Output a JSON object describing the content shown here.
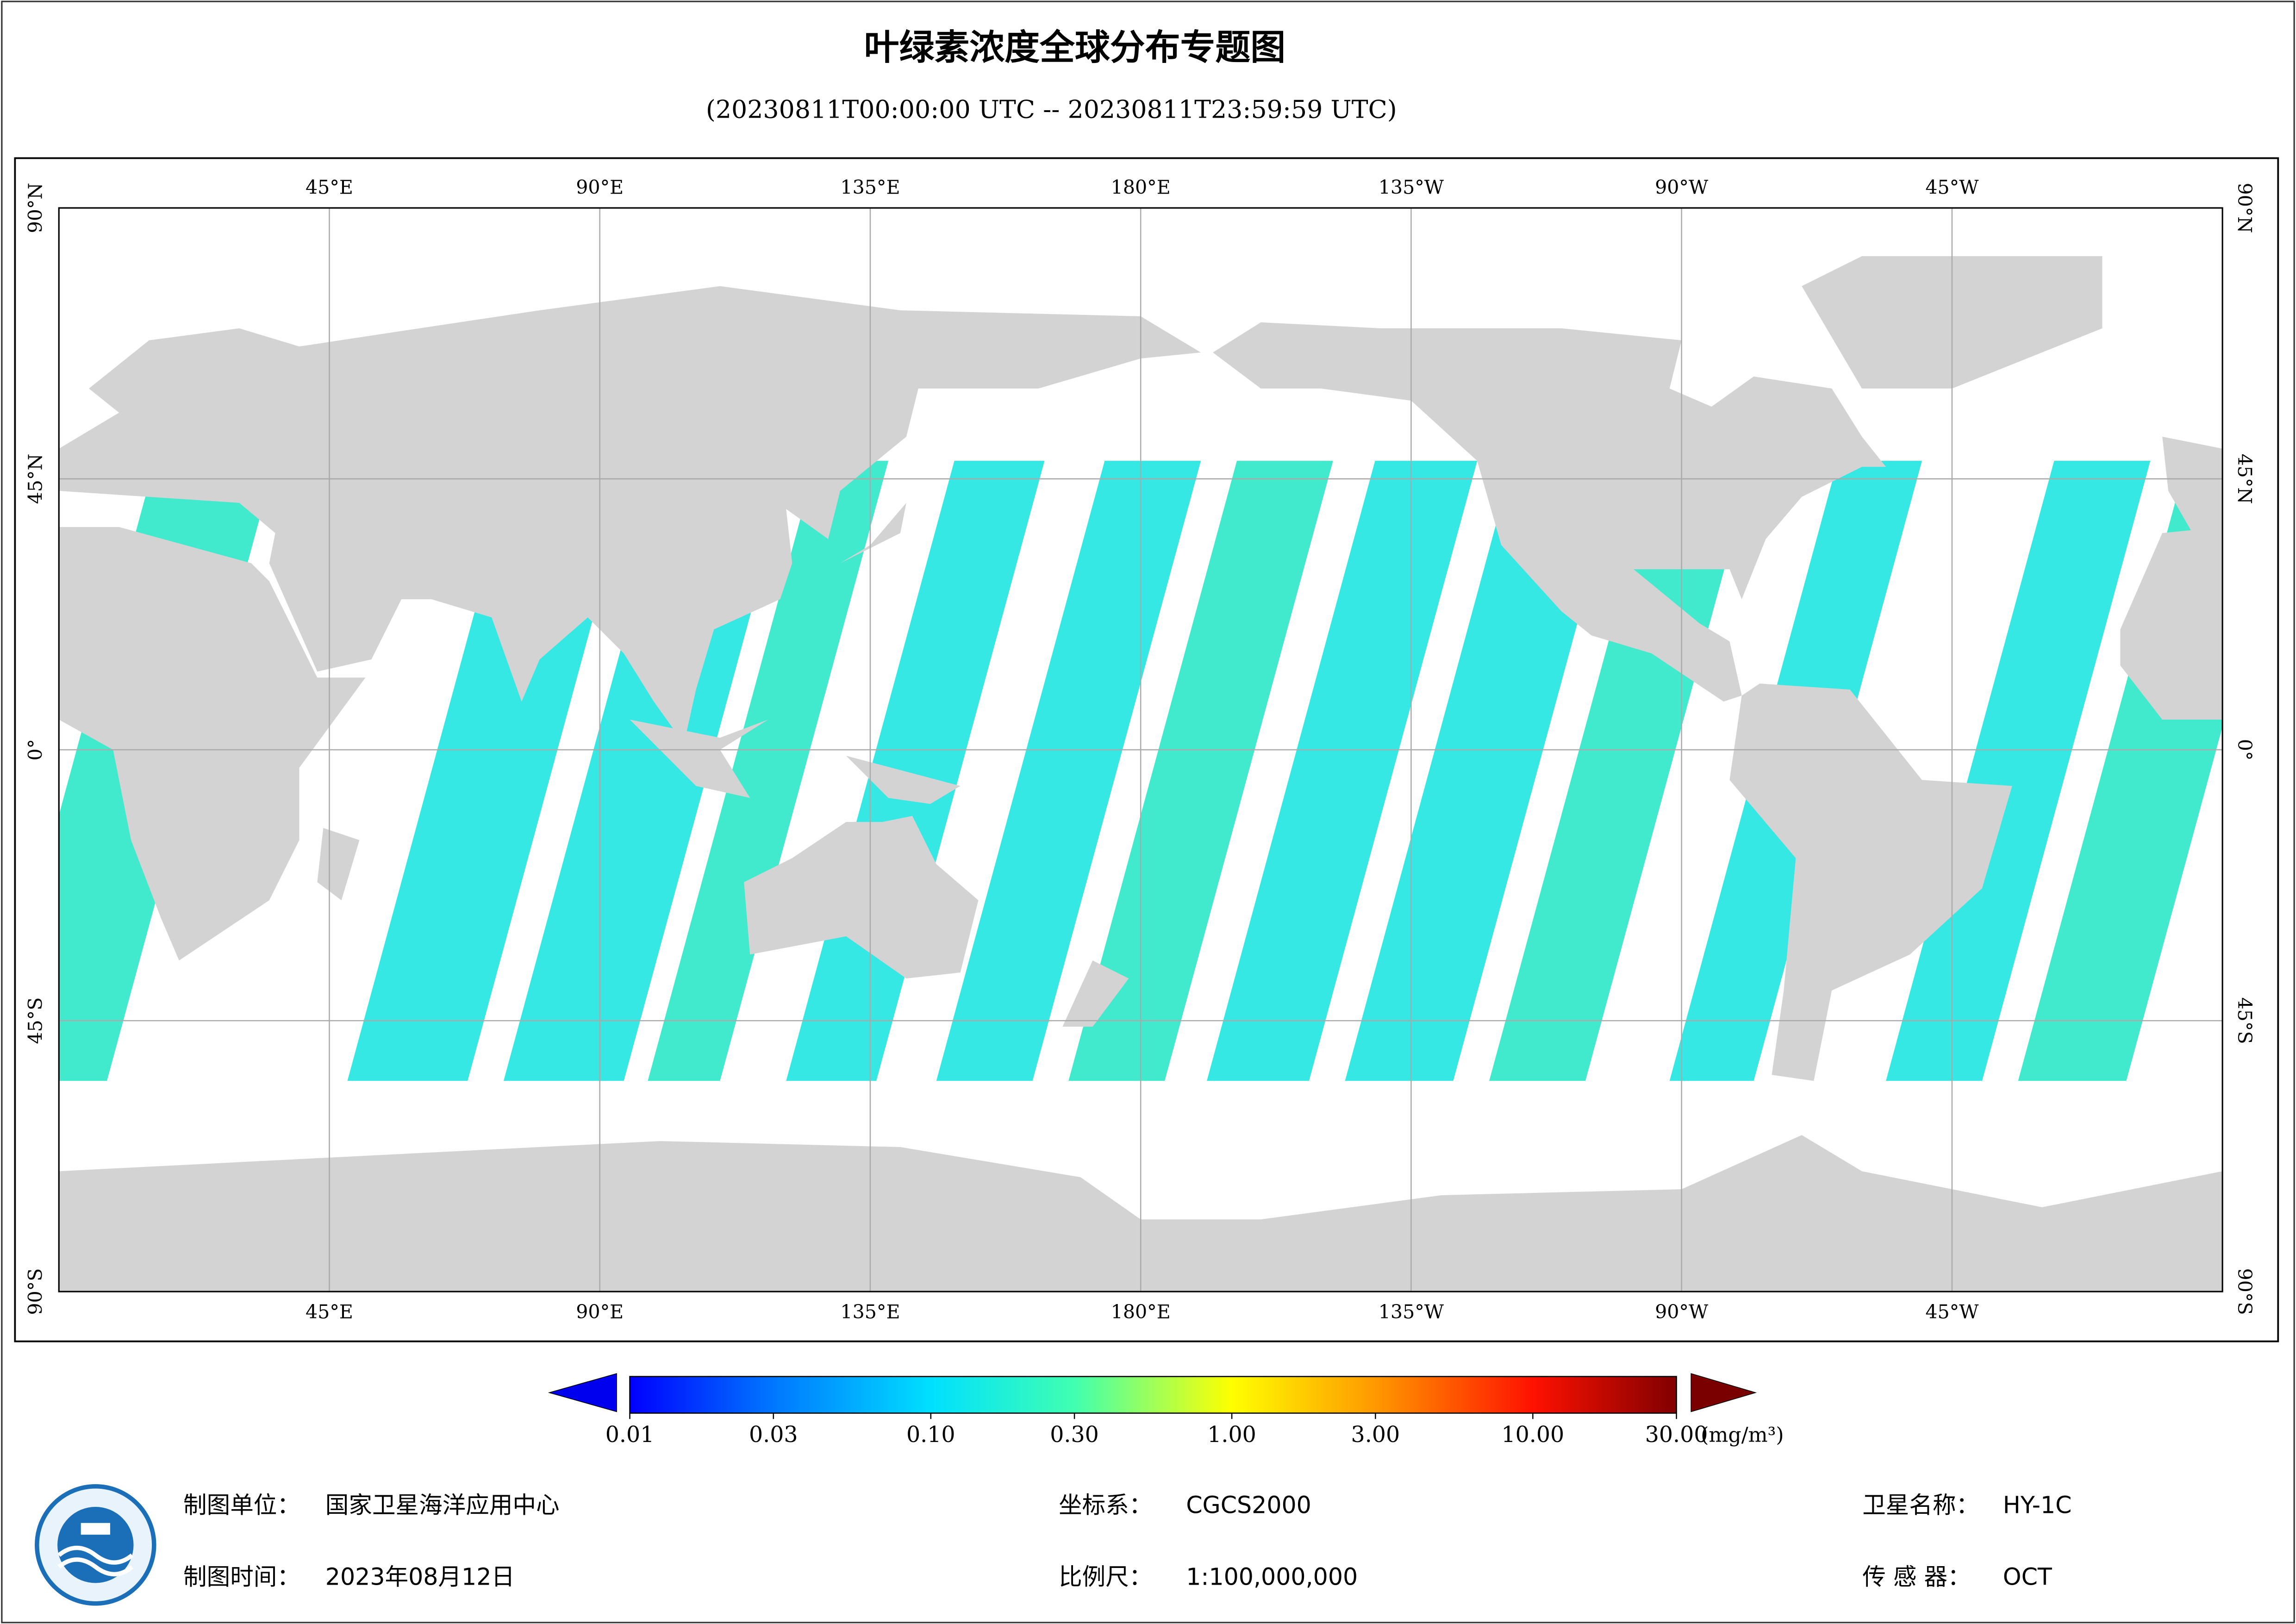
{
  "header": {
    "title": "叶绿素浓度全球分布专题图",
    "subtitle": "(20230811T00:00:00 UTC -- 20230811T23:59:59 UTC)"
  },
  "map": {
    "lon_labels": [
      "45°E",
      "90°E",
      "135°E",
      "180°E",
      "135°W",
      "90°W",
      "45°W"
    ],
    "lat_labels": [
      "90°N",
      "45°N",
      "0°",
      "45°S",
      "90°S"
    ]
  },
  "colorbar": {
    "log": true,
    "lim": [
      0.01,
      30
    ],
    "ticks": [
      0.01,
      0.03,
      {
        "value": 0.1,
        "label": "0.10"
      },
      {
        "value": 0.3,
        "label": "0.30"
      },
      {
        "value": 1,
        "label": "1.00"
      },
      {
        "value": 3,
        "label": "3.00"
      },
      {
        "value": 10,
        "label": "10.00"
      },
      {
        "value": 30,
        "label": "30.00"
      }
    ],
    "unit": "(mg/m³)"
  },
  "footer": {
    "items": [
      {
        "label": "制图单位：",
        "value": "国家卫星海洋应用中心"
      },
      {
        "label": "坐标系：",
        "value": "CGCS2000"
      },
      {
        "label": "卫星名称：",
        "value": "HY-1C"
      },
      {
        "label": "制图时间：",
        "value": "2023年08月12日"
      },
      {
        "label": "比例尺：",
        "value": "1:100,000,000"
      },
      {
        "label": "传 感 器：",
        "value": "OCT"
      }
    ]
  }
}
